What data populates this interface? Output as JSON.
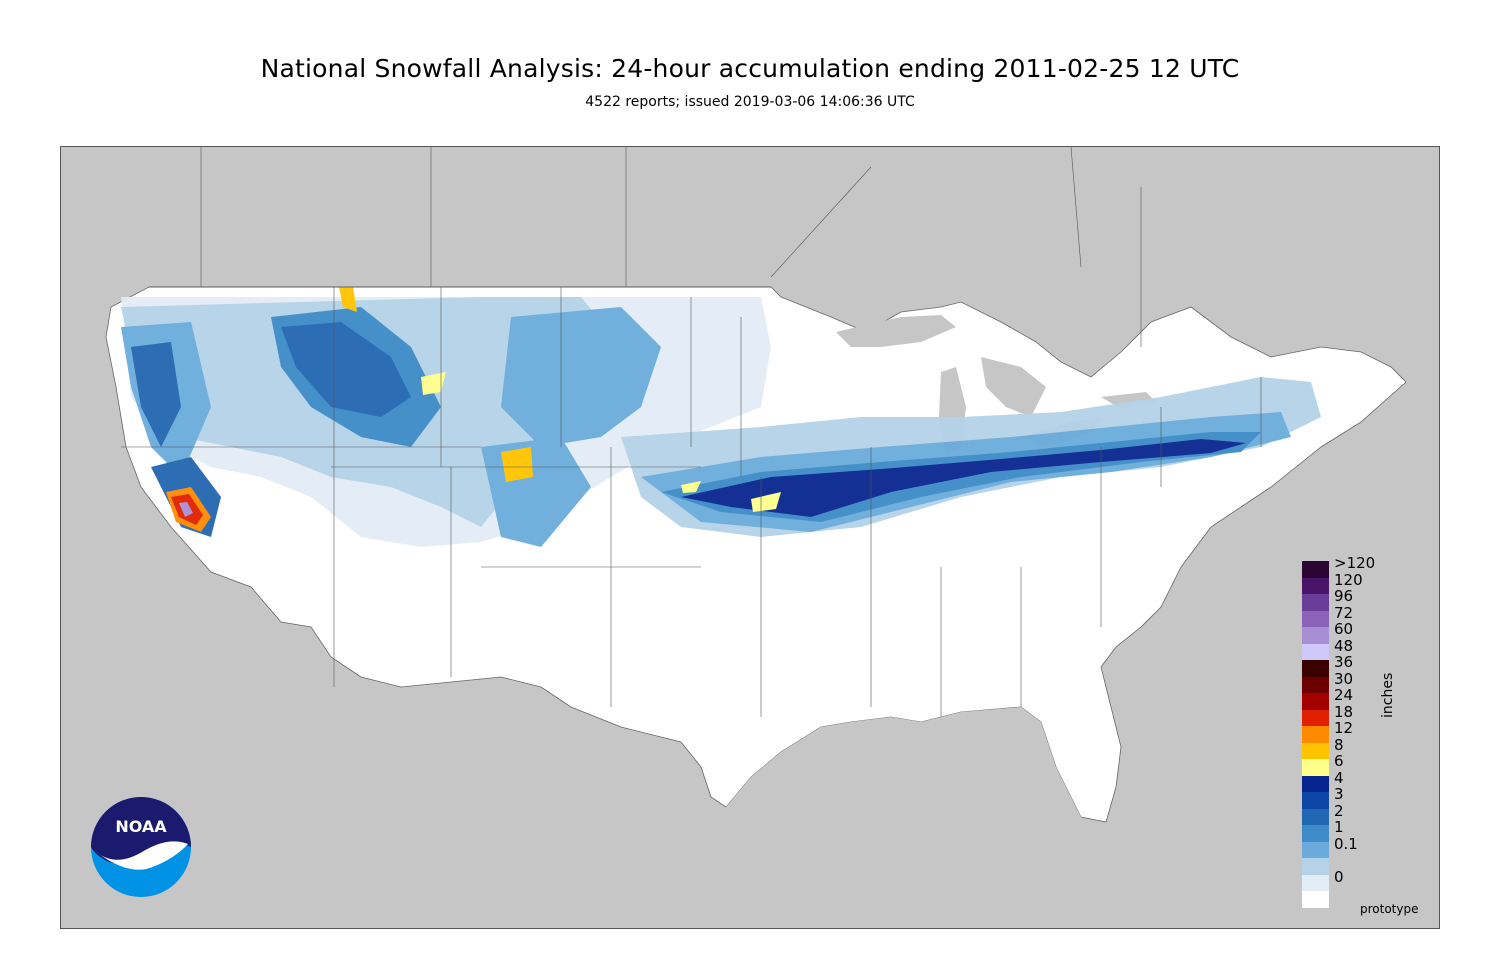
{
  "header": {
    "title": "National Snowfall Analysis: 24-hour accumulation ending 2011-02-25 12 UTC",
    "subtitle": "4522 reports; issued 2019-03-06 14:06:36 UTC"
  },
  "map": {
    "background_color": "#c6c6c6",
    "land_color": "#ffffff",
    "footer_label": "prototype"
  },
  "legend": {
    "units": "inches",
    "entries": [
      {
        "label": ">120",
        "color": "#2b0633"
      },
      {
        "label": "120",
        "color": "#4a1468"
      },
      {
        "label": "96",
        "color": "#6a3d99"
      },
      {
        "label": "72",
        "color": "#8a62b8"
      },
      {
        "label": "60",
        "color": "#a78fd6"
      },
      {
        "label": "48",
        "color": "#cfc8fb"
      },
      {
        "label": "36",
        "color": "#3b0000"
      },
      {
        "label": "30",
        "color": "#6c0000"
      },
      {
        "label": "24",
        "color": "#a30000"
      },
      {
        "label": "18",
        "color": "#e02000"
      },
      {
        "label": "12",
        "color": "#ff8a00"
      },
      {
        "label": "8",
        "color": "#ffc400"
      },
      {
        "label": "6",
        "color": "#ffff8c"
      },
      {
        "label": "4",
        "color": "#08258f"
      },
      {
        "label": "3",
        "color": "#0b46a5"
      },
      {
        "label": "2",
        "color": "#2166b0"
      },
      {
        "label": "1",
        "color": "#3d8bc8"
      },
      {
        "label": "0.1",
        "color": "#6aabdc"
      },
      {
        "label": "",
        "color": "#b5d2e8"
      },
      {
        "label": "0",
        "color": "#e3edf6"
      },
      {
        "label": "",
        "color": "#ffffff"
      }
    ]
  },
  "logo": {
    "text": "NOAA",
    "colors": {
      "top": "#1a1a6e",
      "bottom": "#0093e5"
    }
  }
}
